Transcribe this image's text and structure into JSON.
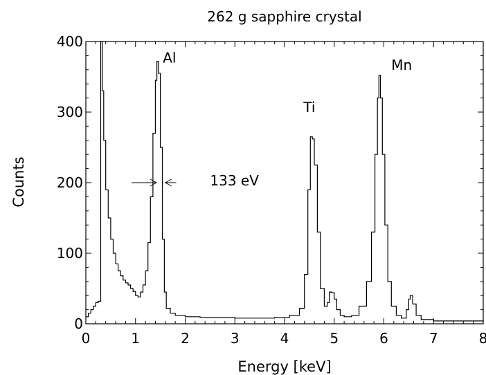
{
  "chart_data": {
    "type": "line",
    "title": "262 g sapphire crystal",
    "xlabel": "Energy [keV]",
    "ylabel": "Counts",
    "xlim": [
      0,
      8
    ],
    "ylim": [
      0,
      400
    ],
    "x_ticks": [
      0,
      1,
      2,
      3,
      4,
      5,
      6,
      7,
      8
    ],
    "y_ticks": [
      0,
      100,
      200,
      300,
      400
    ],
    "x_tick_labels": [
      "0",
      "1",
      "2",
      "3",
      "4",
      "5",
      "6",
      "7",
      "8"
    ],
    "y_tick_labels": [
      "0",
      "100",
      "200",
      "300",
      "400"
    ],
    "grid": false,
    "series": [
      {
        "x": [
          0.0,
          0.05,
          0.1,
          0.15,
          0.2,
          0.25,
          0.3,
          0.33,
          0.36,
          0.4,
          0.45,
          0.5,
          0.55,
          0.6,
          0.65,
          0.7,
          0.75,
          0.8,
          0.85,
          0.9,
          0.95,
          1.0,
          1.05,
          1.1,
          1.15,
          1.2,
          1.25,
          1.3,
          1.35,
          1.4,
          1.43,
          1.46,
          1.5,
          1.54,
          1.58,
          1.62,
          1.7,
          1.8,
          2.0,
          2.3,
          2.6,
          3.0,
          3.4,
          3.8,
          4.1,
          4.3,
          4.4,
          4.47,
          4.52,
          4.56,
          4.6,
          4.66,
          4.72,
          4.8,
          4.86,
          4.9,
          4.95,
          5.0,
          5.05,
          5.12,
          5.2,
          5.35,
          5.5,
          5.65,
          5.75,
          5.82,
          5.87,
          5.9,
          5.93,
          5.97,
          6.02,
          6.08,
          6.15,
          6.25,
          6.35,
          6.45,
          6.5,
          6.53,
          6.58,
          6.65,
          6.75,
          7.0,
          7.3,
          7.6,
          8.0
        ],
        "y": [
          10,
          15,
          20,
          25,
          30,
          32,
          400,
          330,
          260,
          190,
          150,
          120,
          100,
          85,
          75,
          68,
          62,
          58,
          55,
          50,
          46,
          40,
          38,
          45,
          55,
          75,
          115,
          180,
          270,
          345,
          372,
          355,
          250,
          120,
          45,
          22,
          15,
          12,
          10,
          9,
          9,
          8,
          8,
          9,
          12,
          22,
          70,
          190,
          265,
          262,
          225,
          130,
          50,
          25,
          30,
          45,
          44,
          35,
          20,
          12,
          10,
          12,
          25,
          60,
          130,
          240,
          320,
          352,
          320,
          240,
          140,
          60,
          25,
          12,
          8,
          20,
          35,
          40,
          28,
          12,
          6,
          4,
          4,
          4,
          5
        ]
      }
    ],
    "annotations": [
      {
        "text": "Al",
        "x": 1.55,
        "y": 370
      },
      {
        "text": "Ti",
        "x": 4.38,
        "y": 300
      },
      {
        "text": "Mn",
        "x": 6.15,
        "y": 360
      },
      {
        "text": "133 eV",
        "x": 2.5,
        "y": 196,
        "arrow_from": [
          0.92,
          1.82
        ],
        "arrow_to": [
          1.42,
          1.6
        ],
        "arrow_y": 200
      }
    ]
  }
}
